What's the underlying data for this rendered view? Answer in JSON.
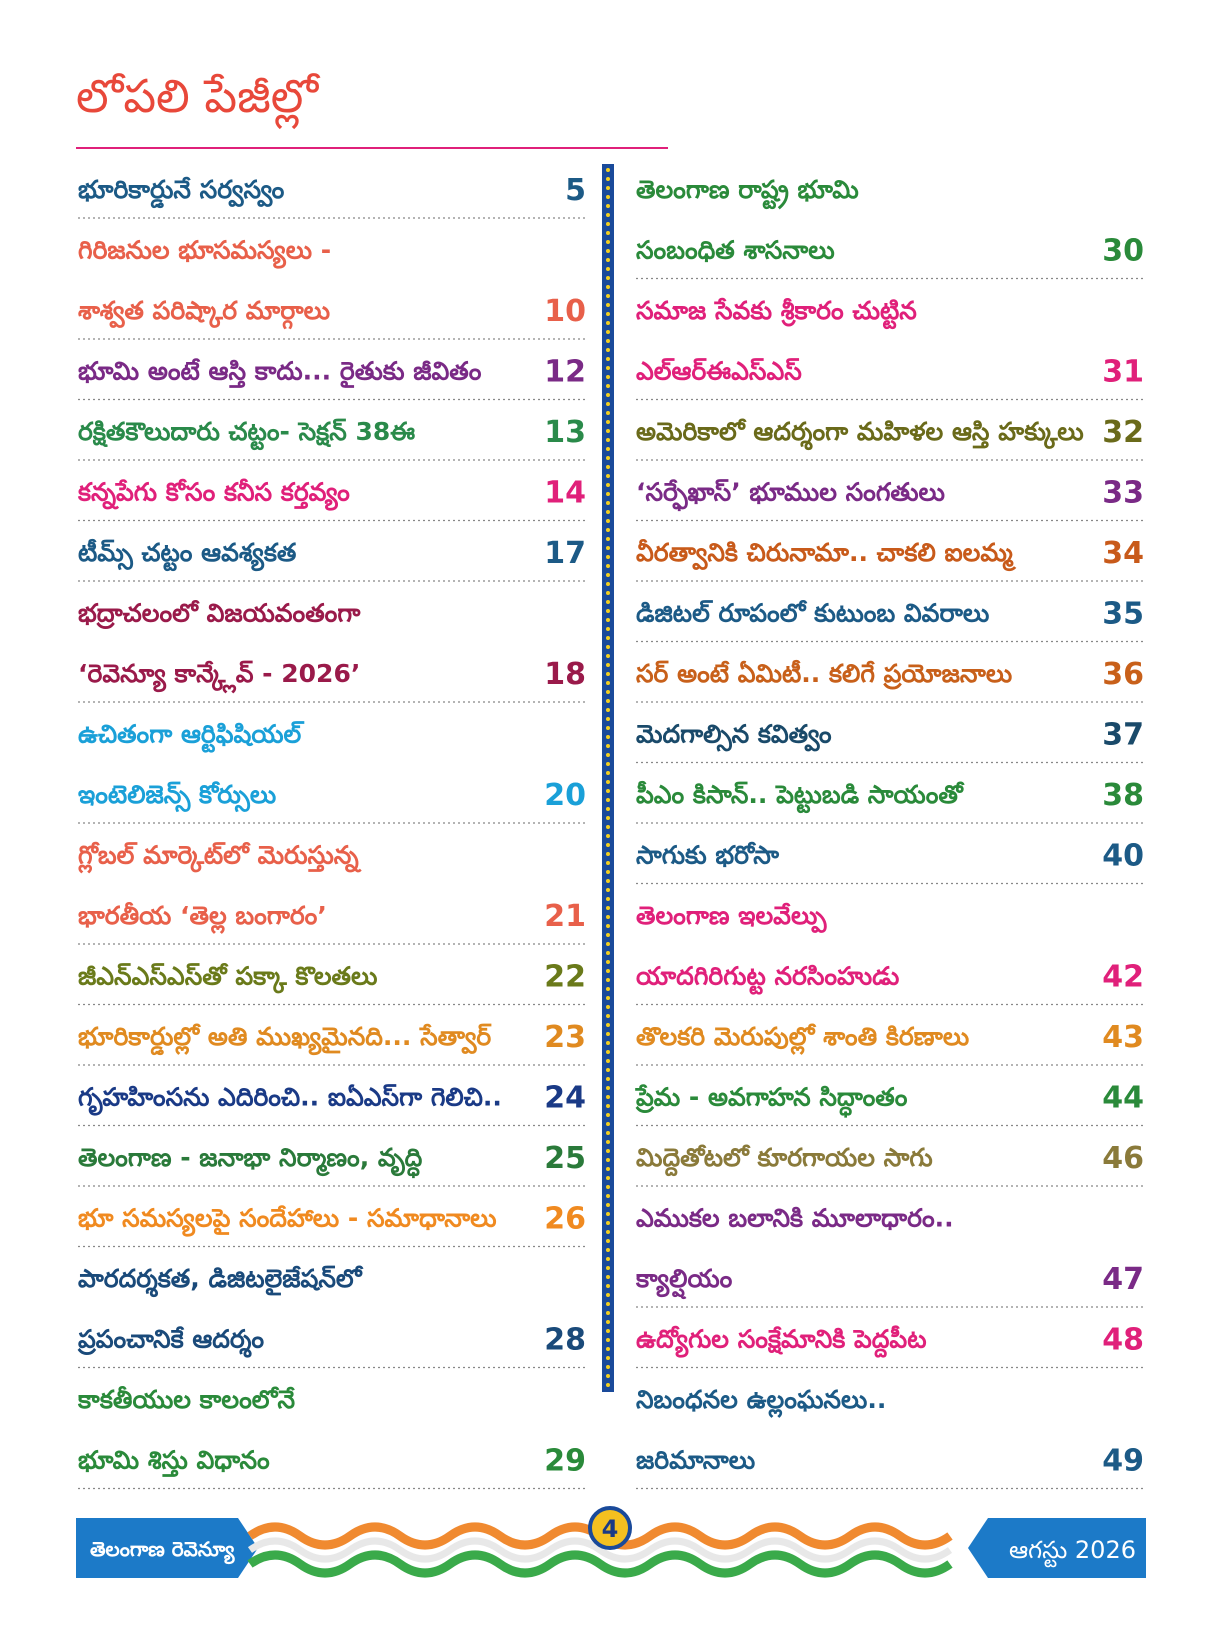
{
  "header": {
    "title": "లోపలి పేజీల్లో"
  },
  "left": [
    {
      "lines": [
        "భూరికార్డునే సర్వస్వం"
      ],
      "page": 5,
      "color": "#1c5a86"
    },
    {
      "lines": [
        "గిరిజనుల భూసమస్యలు -",
        "శాశ్వత పరిష్కార మార్గాలు"
      ],
      "page": 10,
      "color": "#e8604a"
    },
    {
      "lines": [
        "భూమి అంటే ఆస్తి కాదు... రైతుకు జీవితం"
      ],
      "page": 12,
      "color": "#7a2a86"
    },
    {
      "lines": [
        "రక్షితకౌలుదారు చట్టం- సెక్షన్ 38ఈ"
      ],
      "page": 13,
      "color": "#2a8a4a"
    },
    {
      "lines": [
        "కన్నపేగు కోసం కనీస కర్తవ్యం"
      ],
      "page": 14,
      "color": "#e0207a"
    },
    {
      "lines": [
        "టీమ్స్ చట్టం ఆవశ్యకత"
      ],
      "page": 17,
      "color": "#1c5a86"
    },
    {
      "lines": [
        "భద్రాచలంలో విజయవంతంగా",
        "‘రెవెన్యూ కాన్క్లేవ్ - 2026’"
      ],
      "page": 18,
      "color": "#9a1a4a"
    },
    {
      "lines": [
        "ఉచితంగా ఆర్టిఫిషియల్",
        "ఇంటెలిజెన్స్ కోర్సులు"
      ],
      "page": 20,
      "color": "#1aa0d8"
    },
    {
      "lines": [
        "గ్లోబల్ మార్కెట్‌లో మెరుస్తున్న",
        "భారతీయ ‘తెల్ల బంగారం’"
      ],
      "page": 21,
      "color": "#e8604a"
    },
    {
      "lines": [
        "జీఎన్ఎస్ఎస్‌తో పక్కా కొలతలు"
      ],
      "page": 22,
      "color": "#6a7a1a"
    },
    {
      "lines": [
        "భూరికార్డుల్లో అతి ముఖ్యమైనది... సేత్వార్"
      ],
      "page": 23,
      "color": "#e08a20"
    },
    {
      "lines": [
        "గృహహింసను ఎదిరించి.. ఐఏఎస్‌గా గెలిచి.."
      ],
      "page": 24,
      "color": "#1a3a86"
    },
    {
      "lines": [
        "తెలంగాణ - జనాభా నిర్మాణం, వృద్ధి"
      ],
      "page": 25,
      "color": "#2a7a3a"
    },
    {
      "lines": [
        "భూ సమస్యలపై సందేహాలు - సమాధానాలు"
      ],
      "page": 26,
      "color": "#f08a20"
    },
    {
      "lines": [
        "పారదర్శకత, డిజిటలైజేషన్‌లో",
        "ప్రపంచానికే ఆదర్శం"
      ],
      "page": 28,
      "color": "#1a4a7a"
    },
    {
      "lines": [
        "కాకతీయుల కాలంలోనే",
        "భూమి శిస్తు విధానం"
      ],
      "page": 29,
      "color": "#2a8a3a"
    }
  ],
  "right": [
    {
      "lines": [
        "తెలంగాణ రాష్ట్ర భూమి",
        "సంబంధిత శాసనాలు"
      ],
      "page": 30,
      "color": "#2a8a3a"
    },
    {
      "lines": [
        "సమాజ సేవకు శ్రీకారం చుట్టిన",
        "ఎల్ఆర్ఈఎస్ఎస్"
      ],
      "page": 31,
      "color": "#e0207a"
    },
    {
      "lines": [
        "అమెరికాలో ఆదర్శంగా మహిళల ఆస్తి హక్కులు"
      ],
      "page": 32,
      "color": "#6a6a1a"
    },
    {
      "lines": [
        "‘సర్ఫేఖాస్’ భూముల సంగతులు"
      ],
      "page": 33,
      "color": "#7a2a86"
    },
    {
      "lines": [
        "వీరత్వానికి చిరునామా.. చాకలి ఐలమ్మ"
      ],
      "page": 34,
      "color": "#c85a1a"
    },
    {
      "lines": [
        "డిజిటల్ రూపంలో కుటుంబ వివరాలు"
      ],
      "page": 35,
      "color": "#1c5a86"
    },
    {
      "lines": [
        "సర్ అంటే ఏమిటీ.. కలిగే ప్రయోజనాలు"
      ],
      "page": 36,
      "color": "#c8601a"
    },
    {
      "lines": [
        "మెదగాల్సిన కవిత్వం"
      ],
      "page": 37,
      "color": "#1a4a6a"
    },
    {
      "lines": [
        "పీఎం కిసాన్.. పెట్టుబడి సాయంతో"
      ],
      "page": 38,
      "color": "#2a8a3a"
    },
    {
      "lines": [
        "సాగుకు భరోసా"
      ],
      "page": 40,
      "color": "#1c5a86"
    },
    {
      "lines": [
        "తెలంగాణ ఇలవేల్పు",
        "యాదగిరిగుట్ట నరసింహుడు"
      ],
      "page": 42,
      "color": "#e0207a"
    },
    {
      "lines": [
        "తొలకరి మెరుపుల్లో శాంతి కిరణాలు"
      ],
      "page": 43,
      "color": "#e08a20"
    },
    {
      "lines": [
        "ప్రేమ - అవగాహన సిద్ధాంతం"
      ],
      "page": 44,
      "color": "#2a8a3a"
    },
    {
      "lines": [
        "మిద్దెతోటలో కూరగాయల సాగు"
      ],
      "page": 46,
      "color": "#8a7a3a"
    },
    {
      "lines": [
        "ఎముకల బలానికి మూలాధారం..",
        "క్యాల్షియం"
      ],
      "page": 47,
      "color": "#7a2a86"
    },
    {
      "lines": [
        "ఉద్యోగుల సంక్షేమానికి పెద్దపీట"
      ],
      "page": 48,
      "color": "#e0207a"
    },
    {
      "lines": [
        "నిబంధనల ఉల్లంఘనలు..",
        "జరిమానాలు"
      ],
      "page": 49,
      "color": "#1c5a86"
    }
  ],
  "footer": {
    "magazine": "తెలంగాణ రెవెన్యూ",
    "page_number": 4,
    "issue": "ఆగస్టు 2026"
  }
}
